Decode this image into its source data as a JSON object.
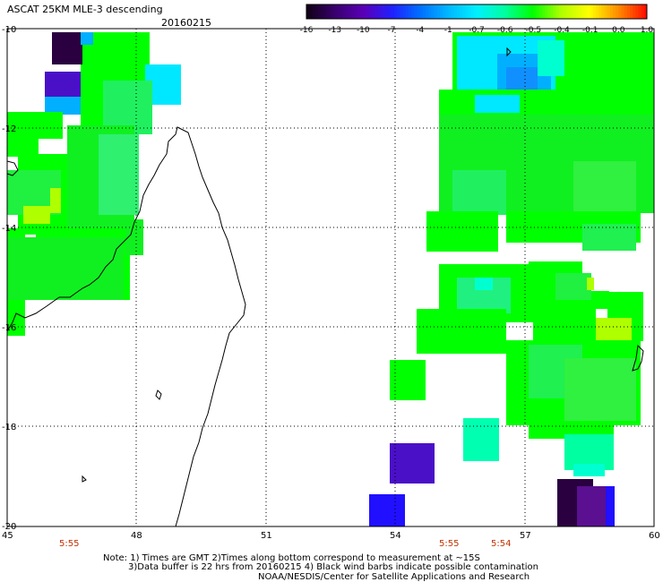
{
  "header": {
    "title": "ASCAT 25KM MLE-3 descending",
    "date": "20160215"
  },
  "colorbar": {
    "labels": [
      "-16",
      "-13",
      "-10",
      "-7",
      "-4",
      "-1",
      "-0.7",
      "-0.6",
      "-0.5",
      "-0.4",
      "-0.1",
      "0.0",
      "1.0"
    ],
    "colors": [
      "#120018",
      "#3a0070",
      "#5a00b8",
      "#2020ff",
      "#0070ff",
      "#00b8ff",
      "#00f0ff",
      "#00ffa0",
      "#00ff00",
      "#b0ff00",
      "#ffff00",
      "#ff9000",
      "#ff1000"
    ]
  },
  "axes": {
    "lon_labels": [
      "45",
      "48",
      "51",
      "54",
      "57",
      "60"
    ],
    "lat_labels": [
      "-10",
      "-12",
      "-14",
      "-16",
      "-18",
      "-20"
    ]
  },
  "times": [
    "5:55",
    "5:55",
    "5:54"
  ],
  "notes": {
    "line1": "Note: 1) Times are GMT 2)Times along bottom correspond to measurement at ~15S",
    "line2": "3)Data buffer is 22 hrs from 20160215 4) Black wind barbs indicate possible contamination",
    "line3": "NOAA/NESDIS/Center for Satellite Applications and Research"
  },
  "palette": {
    "green": "#00ff00",
    "green_mid": "#10f020",
    "cyan": "#00e8ff",
    "aqua": "#00ffb0",
    "blue": "#2010ff",
    "blue_light": "#00b0ff",
    "violet": "#4a10c8",
    "dark_purple": "#2a0040",
    "yellow_green": "#b0ff00",
    "time_color": "#c03000"
  }
}
